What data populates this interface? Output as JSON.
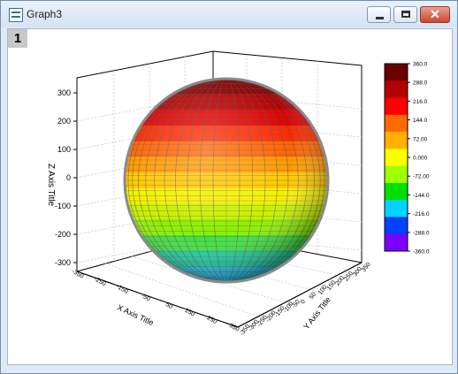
{
  "window": {
    "title": "Graph3",
    "close_glyph": "✕",
    "icons": {
      "app": "graph-window-icon",
      "min": "minimize-icon",
      "max": "maximize-icon",
      "close": "close-icon"
    }
  },
  "layer": {
    "label": "1"
  },
  "axes": {
    "x_title": "X Axis Title",
    "y_title": "Y Axis Title",
    "z_title": "Z Axis Title",
    "z_ticks": [
      "300",
      "200",
      "100",
      "0",
      "-100",
      "-200",
      "-300"
    ],
    "x_ticks": [
      "-350",
      "-250",
      "-150",
      "-50",
      "50",
      "150",
      "250",
      "350"
    ],
    "y_ticks": [
      "-350",
      "-300",
      "-250",
      "-200",
      "-150",
      "-100",
      "-50",
      "0",
      "50",
      "100",
      "150",
      "200",
      "250",
      "300",
      "350"
    ]
  },
  "colorbar": {
    "labels": [
      "360.0",
      "288.0",
      "216.0",
      "144.0",
      "72.00",
      "0.000",
      "-72.00",
      "-144.0",
      "-216.0",
      "-288.0",
      "-360.0"
    ],
    "colors": [
      "#6b0000",
      "#b30000",
      "#ff0000",
      "#ff6a00",
      "#ffb000",
      "#ffff00",
      "#a0ff00",
      "#00e000",
      "#00d4ff",
      "#0040ff",
      "#7a00ff"
    ]
  }
}
